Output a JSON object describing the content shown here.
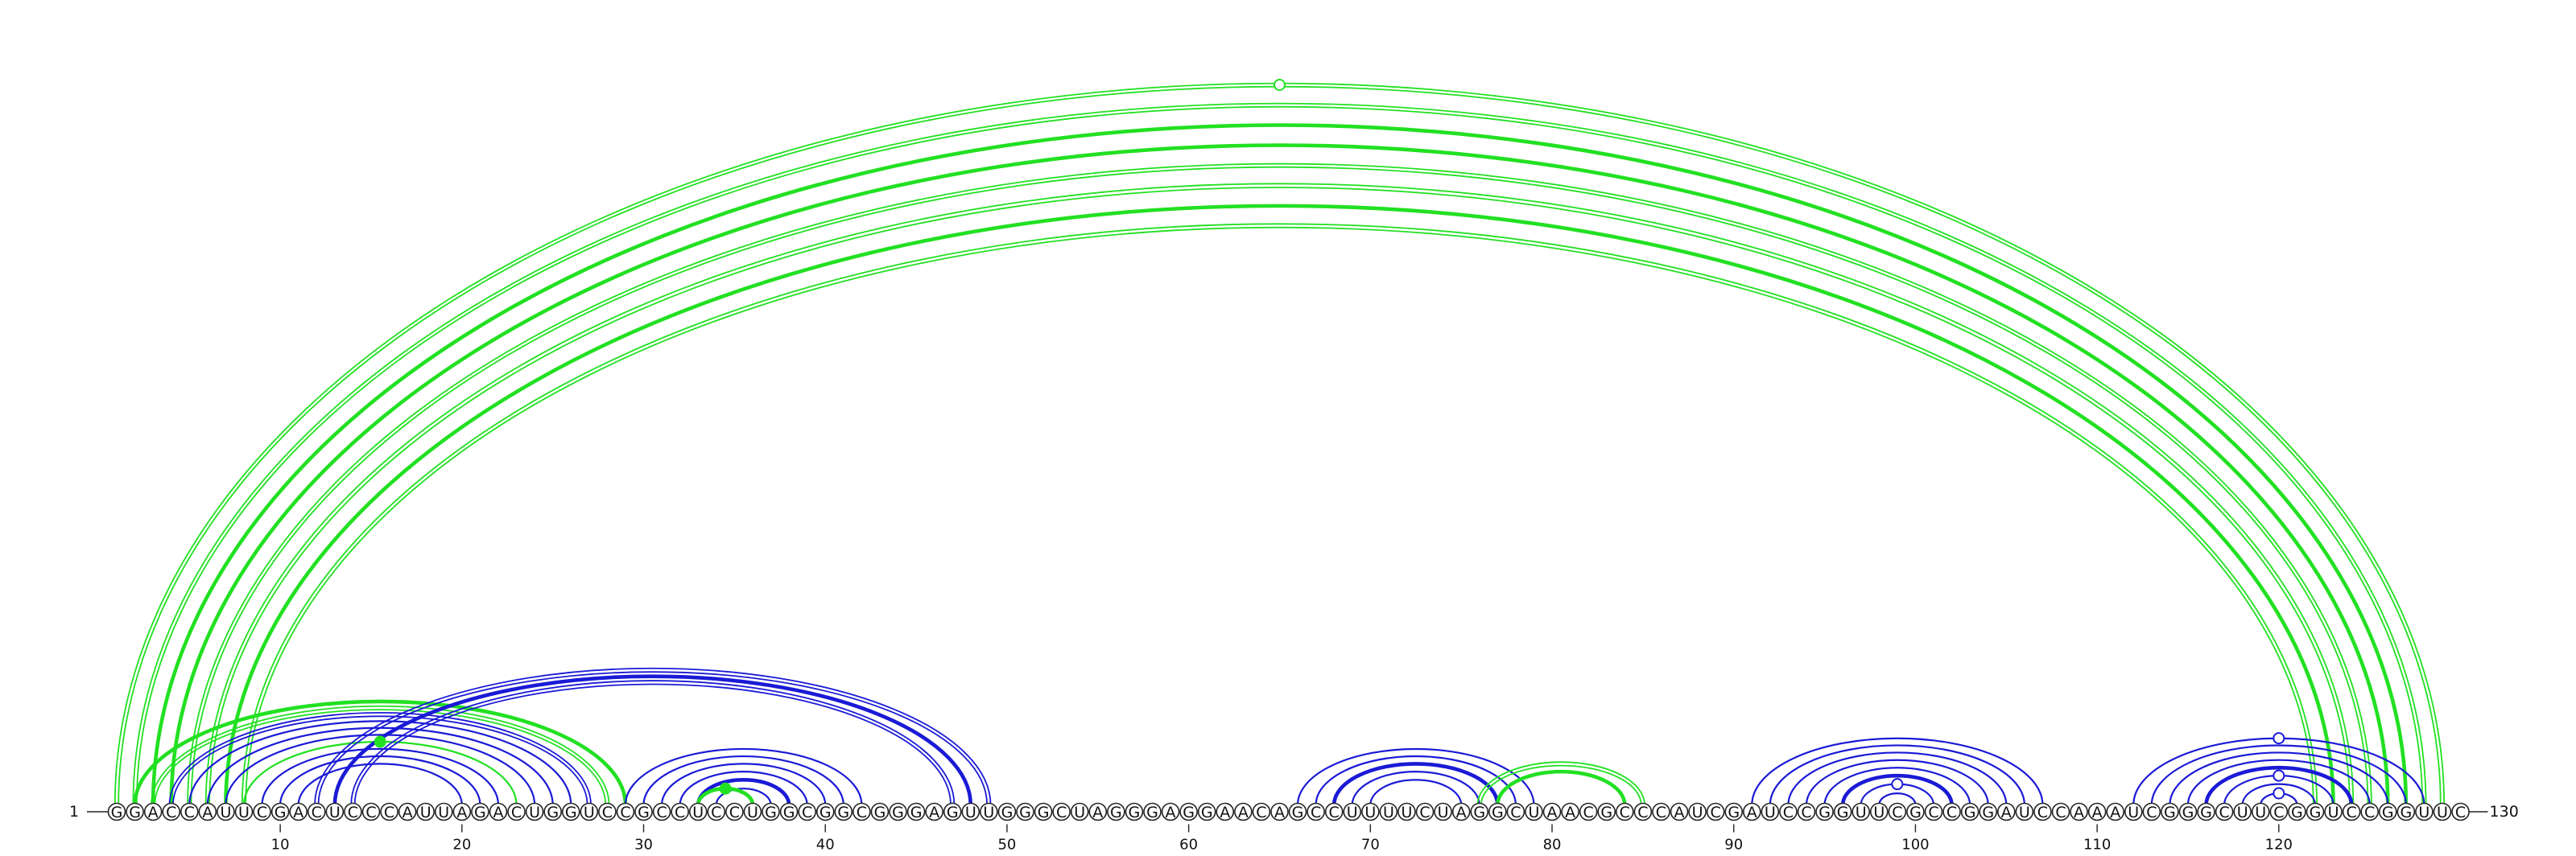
{
  "diagram": {
    "sequence": "GGACCAUUCGACUCCCAUUAGACUGGUCCGCCUCCUGGCGGCGGGAGUUGGGCUAGGGAGGAACAGCCUUUUCUAGGCUAACGCCCAUCGAUCCGGUUCGCCGGAUCCAAAUCGGGCUUCGGUCCGGUUC",
    "start_label": "1",
    "end_label": "130",
    "ticks": [
      "10",
      "20",
      "30",
      "40",
      "50",
      "60",
      "70",
      "80",
      "90",
      "100",
      "110",
      "120"
    ],
    "colors": {
      "blue": "#1a1ad6",
      "green": "#22e022"
    },
    "arcs": [
      {
        "i": 1,
        "j": 129,
        "color": "green",
        "style": "double"
      },
      {
        "i": 2,
        "j": 128,
        "color": "green",
        "style": "double"
      },
      {
        "i": 3,
        "j": 127,
        "color": "green",
        "style": "thick"
      },
      {
        "i": 4,
        "j": 126,
        "color": "green",
        "style": "thick"
      },
      {
        "i": 5,
        "j": 125,
        "color": "green",
        "style": "double"
      },
      {
        "i": 6,
        "j": 124,
        "color": "green",
        "style": "double"
      },
      {
        "i": 7,
        "j": 123,
        "color": "green",
        "style": "thick"
      },
      {
        "i": 8,
        "j": 122,
        "color": "green",
        "style": "double"
      },
      {
        "i": 2,
        "j": 29,
        "color": "green",
        "style": "thick"
      },
      {
        "i": 3,
        "j": 28,
        "color": "green",
        "style": "double"
      },
      {
        "i": 4,
        "j": 27,
        "color": "blue",
        "style": "double"
      },
      {
        "i": 5,
        "j": 26,
        "color": "blue",
        "style": "single"
      },
      {
        "i": 6,
        "j": 25,
        "color": "blue",
        "style": "single"
      },
      {
        "i": 7,
        "j": 24,
        "color": "blue",
        "style": "single"
      },
      {
        "i": 8,
        "j": 23,
        "color": "green",
        "style": "single"
      },
      {
        "i": 9,
        "j": 22,
        "color": "blue",
        "style": "single"
      },
      {
        "i": 10,
        "j": 21,
        "color": "blue",
        "style": "single"
      },
      {
        "i": 11,
        "j": 20,
        "color": "blue",
        "style": "single"
      },
      {
        "i": 12,
        "j": 49,
        "color": "blue",
        "style": "double"
      },
      {
        "i": 13,
        "j": 48,
        "color": "blue",
        "style": "thick"
      },
      {
        "i": 14,
        "j": 47,
        "color": "blue",
        "style": "double"
      },
      {
        "i": 29,
        "j": 42,
        "color": "blue",
        "style": "single"
      },
      {
        "i": 30,
        "j": 41,
        "color": "blue",
        "style": "single"
      },
      {
        "i": 31,
        "j": 40,
        "color": "blue",
        "style": "single"
      },
      {
        "i": 32,
        "j": 39,
        "color": "blue",
        "style": "single"
      },
      {
        "i": 33,
        "j": 38,
        "color": "blue",
        "style": "thick"
      },
      {
        "i": 34,
        "j": 37,
        "color": "blue",
        "style": "single"
      },
      {
        "i": 33,
        "j": 36,
        "color": "green",
        "style": "thick"
      },
      {
        "i": 66,
        "j": 79,
        "color": "blue",
        "style": "single"
      },
      {
        "i": 67,
        "j": 78,
        "color": "blue",
        "style": "single"
      },
      {
        "i": 68,
        "j": 77,
        "color": "blue",
        "style": "thick"
      },
      {
        "i": 69,
        "j": 76,
        "color": "blue",
        "style": "single"
      },
      {
        "i": 70,
        "j": 75,
        "color": "blue",
        "style": "single"
      },
      {
        "i": 76,
        "j": 85,
        "color": "green",
        "style": "double"
      },
      {
        "i": 77,
        "j": 84,
        "color": "green",
        "style": "thick"
      },
      {
        "i": 91,
        "j": 107,
        "color": "blue",
        "style": "single"
      },
      {
        "i": 92,
        "j": 106,
        "color": "blue",
        "style": "single"
      },
      {
        "i": 93,
        "j": 105,
        "color": "blue",
        "style": "single"
      },
      {
        "i": 94,
        "j": 104,
        "color": "blue",
        "style": "single"
      },
      {
        "i": 95,
        "j": 103,
        "color": "blue",
        "style": "single"
      },
      {
        "i": 96,
        "j": 102,
        "color": "blue",
        "style": "thick"
      },
      {
        "i": 97,
        "j": 101,
        "color": "blue",
        "style": "single"
      },
      {
        "i": 98,
        "j": 100,
        "color": "blue",
        "style": "single"
      },
      {
        "i": 112,
        "j": 128,
        "color": "blue",
        "style": "single"
      },
      {
        "i": 113,
        "j": 127,
        "color": "blue",
        "style": "single"
      },
      {
        "i": 114,
        "j": 126,
        "color": "blue",
        "style": "single"
      },
      {
        "i": 115,
        "j": 125,
        "color": "blue",
        "style": "single"
      },
      {
        "i": 116,
        "j": 124,
        "color": "blue",
        "style": "thick"
      },
      {
        "i": 117,
        "j": 123,
        "color": "blue",
        "style": "single"
      },
      {
        "i": 118,
        "j": 122,
        "color": "blue",
        "style": "single"
      },
      {
        "i": 119,
        "j": 121,
        "color": "blue",
        "style": "single"
      }
    ],
    "markers": [
      {
        "i": 1,
        "j": 129,
        "color": "green",
        "filled": false
      },
      {
        "i": 8,
        "j": 23,
        "color": "green",
        "filled": true
      },
      {
        "i": 33,
        "j": 36,
        "color": "green",
        "filled": true
      },
      {
        "i": 97,
        "j": 101,
        "color": "blue",
        "filled": false
      },
      {
        "i": 112,
        "j": 128,
        "color": "blue",
        "filled": false
      },
      {
        "i": 117,
        "j": 123,
        "color": "blue",
        "filled": false
      },
      {
        "i": 119,
        "j": 121,
        "color": "blue",
        "filled": false
      }
    ]
  }
}
